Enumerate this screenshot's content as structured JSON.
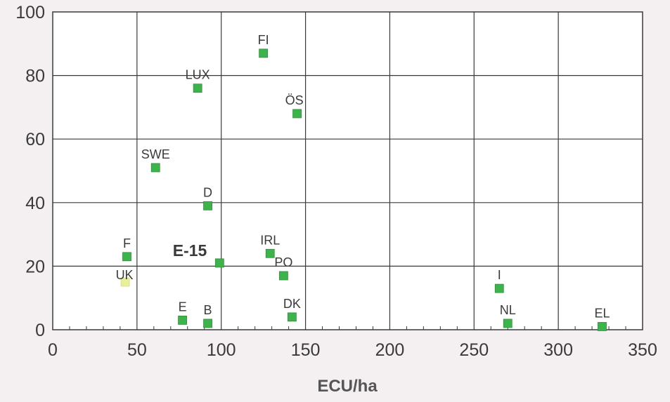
{
  "chart_data": {
    "type": "scatter",
    "title": "",
    "xlabel": "ECU/ha",
    "ylabel": "",
    "xlim": [
      0,
      350
    ],
    "ylim": [
      0,
      100
    ],
    "xticks": [
      0,
      50,
      100,
      150,
      200,
      250,
      300,
      350
    ],
    "yticks": [
      0,
      20,
      40,
      60,
      80,
      100
    ],
    "xtick_labels": [
      "0",
      "50",
      "100",
      "150",
      "200",
      "250",
      "300",
      "350"
    ],
    "ytick_labels": [
      "0",
      "20",
      "40",
      "60",
      "80",
      "100"
    ],
    "grid": true,
    "legend": "none",
    "points": [
      {
        "label": "FI",
        "x": 125,
        "y": 87,
        "color": "#3cb44b"
      },
      {
        "label": "LUX",
        "x": 86,
        "y": 76,
        "color": "#3cb44b"
      },
      {
        "label": "ÖS",
        "x": 145,
        "y": 68,
        "color": "#3cb44b"
      },
      {
        "label": "SWE",
        "x": 61,
        "y": 51,
        "color": "#3cb44b"
      },
      {
        "label": "D",
        "x": 92,
        "y": 39,
        "color": "#3cb44b"
      },
      {
        "label": "F",
        "x": 44,
        "y": 23,
        "color": "#3cb44b"
      },
      {
        "label": "E-15",
        "x": 99,
        "y": 21,
        "color": "#3cb44b",
        "emphasis": true
      },
      {
        "label": "IRL",
        "x": 129,
        "y": 24,
        "color": "#3cb44b"
      },
      {
        "label": "PO",
        "x": 137,
        "y": 17,
        "color": "#3cb44b"
      },
      {
        "label": "UK",
        "x": 43,
        "y": 15,
        "color": "#e8ef9a"
      },
      {
        "label": "I",
        "x": 265,
        "y": 13,
        "color": "#3cb44b"
      },
      {
        "label": "E",
        "x": 77,
        "y": 3,
        "color": "#3cb44b"
      },
      {
        "label": "B",
        "x": 92,
        "y": 2,
        "color": "#3cb44b"
      },
      {
        "label": "DK",
        "x": 142,
        "y": 4,
        "color": "#3cb44b"
      },
      {
        "label": "NL",
        "x": 270,
        "y": 2,
        "color": "#3cb44b"
      },
      {
        "label": "EL",
        "x": 326,
        "y": 1,
        "color": "#3cb44b"
      }
    ]
  }
}
